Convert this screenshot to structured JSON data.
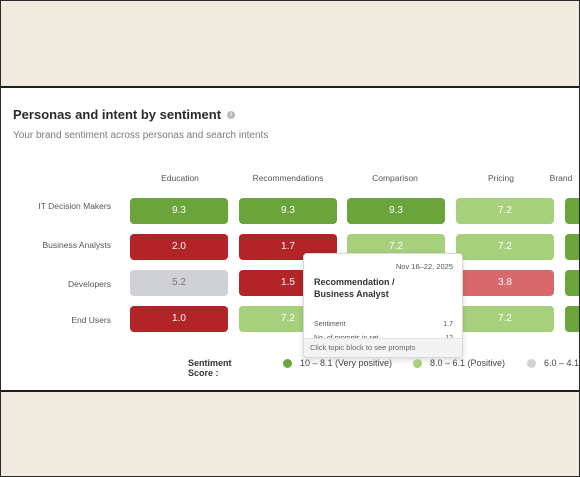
{
  "widget": {
    "title": "Personas and intent by sentiment",
    "subtitle": "Your brand sentiment across personas and search intents",
    "info_icon": "info-icon"
  },
  "columns": [
    "Education",
    "Recommendations",
    "Comparison",
    "Pricing",
    "Brand"
  ],
  "rows": [
    {
      "label": "IT Decision Makers",
      "cells": [
        "9.3",
        "9.3",
        "9.3",
        "7.2",
        ""
      ]
    },
    {
      "label": "Business Analysts",
      "cells": [
        "2.0",
        "1.7",
        "7.2",
        "7.2",
        ""
      ]
    },
    {
      "label": "Developers",
      "cells": [
        "5.2",
        "1.5",
        "",
        "3.8",
        ""
      ]
    },
    {
      "label": "End Users",
      "cells": [
        "1.0",
        "7.2",
        "",
        "7.2",
        ""
      ]
    }
  ],
  "tooltip": {
    "date": "Nov 16–22, 2025",
    "title": "Recommendation / Business Analyst",
    "sentiment_label": "Sentiment",
    "sentiment_value": "1.7",
    "prompts_label": "No. of prompts in set",
    "prompts_value": "12",
    "footer": "Click topic block to see prompts"
  },
  "legend": {
    "title": "Sentiment Score :",
    "items": [
      {
        "label": "10 – 8.1 (Very positive)",
        "color": "#6aa43a"
      },
      {
        "label": "8.0 – 6.1 (Positive)",
        "color": "#a6d07c"
      },
      {
        "label": "6.0 – 4.1",
        "color": "#cfd1d4"
      }
    ]
  },
  "colors": {
    "very_positive": "#6aa43a",
    "positive": "#a6d07c",
    "neutral": "#cfd1d4",
    "negative": "#d9686a",
    "very_negative": "#b22428",
    "background": "#f0ebde"
  }
}
